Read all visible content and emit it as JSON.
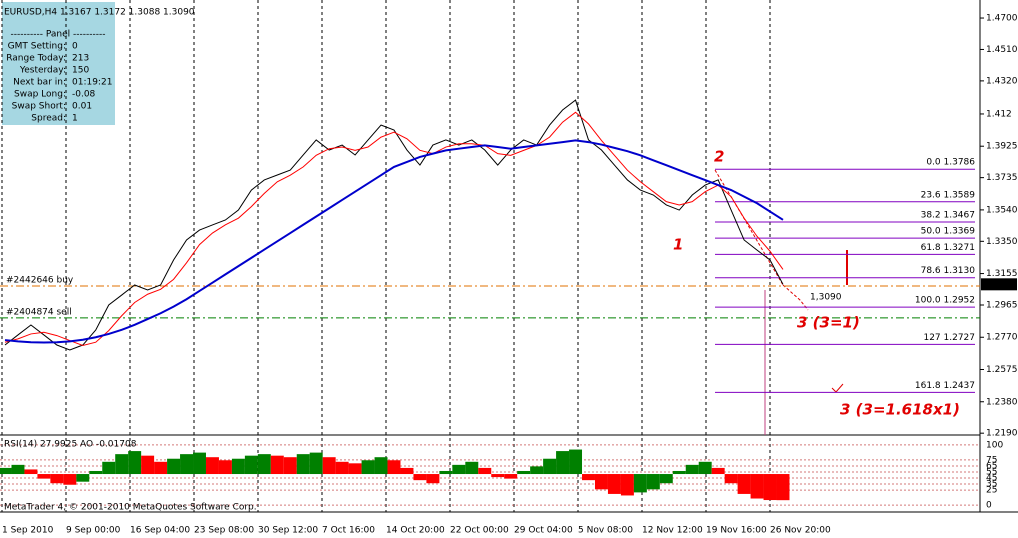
{
  "header": "EURUSD,H4  1.3167 1.3172 1.3088 1.3090",
  "panel": {
    "title": "---------- Panel ----------",
    "rows": [
      [
        "GMT Setting:",
        "0"
      ],
      [
        "Range Today:",
        "213"
      ],
      [
        "Yesterday:",
        "150"
      ],
      [
        "Next bar in:",
        "01:19:21"
      ],
      [
        "Swap Long:",
        "-0.08"
      ],
      [
        "Swap Short:",
        "0.01"
      ],
      [
        "Spread:",
        "1"
      ]
    ]
  },
  "chart_data": {
    "type": "line",
    "ylim": [
      1.2179,
      1.4809
    ],
    "yticks": [
      {
        "value": 1.47,
        "label": "1.4700"
      },
      {
        "value": 1.451,
        "label": "1.4510"
      },
      {
        "value": 1.432,
        "label": "1.4320"
      },
      1.412,
      1.3925,
      1.3735,
      {
        "value": 1.354,
        "label": "1.3540"
      },
      {
        "value": 1.335,
        "label": "1.3350"
      },
      1.3155,
      1.2965,
      {
        "value": 1.277,
        "label": "1.2770"
      },
      1.2575,
      {
        "value": 1.238,
        "label": "1.2380"
      },
      {
        "value": 1.219,
        "label": "1.2190"
      }
    ],
    "x_labels": [
      "1 Sep 2010",
      "9 Sep 00:00",
      "16 Sep 04:00",
      "23 Sep 08:00",
      "30 Sep 12:00",
      "7 Oct 16:00",
      "14 Oct 20:00",
      "22 Oct 00:00",
      "29 Oct 04:00",
      "5 Nov 08:00",
      "12 Nov 12:00",
      "19 Nov 16:00",
      "26 Nov 20:00"
    ],
    "series": [
      {
        "color": "#000000",
        "values": [
          1.2723,
          1.2784,
          1.2844,
          1.2784,
          1.2723,
          1.2693,
          1.2723,
          1.2814,
          1.2965,
          1.3025,
          1.3086,
          1.3056,
          1.3086,
          1.3237,
          1.3358,
          1.3418,
          1.3449,
          1.3479,
          1.3539,
          1.366,
          1.3721,
          1.3751,
          1.3781,
          1.3872,
          1.3963,
          1.3902,
          1.3932,
          1.3872,
          1.3963,
          1.4053,
          1.4023,
          1.3902,
          1.3811,
          1.3932,
          1.3963,
          1.3932,
          1.3963,
          1.3902,
          1.3811,
          1.3902,
          1.3963,
          1.3932,
          1.4053,
          1.4144,
          1.4204,
          1.3963,
          1.3902,
          1.3811,
          1.3721,
          1.366,
          1.363,
          1.357,
          1.3539,
          1.363,
          1.369,
          1.3721,
          1.3539,
          1.3358,
          1.3297,
          1.3237,
          1.309
        ]
      },
      {
        "color": "#ff0000",
        "values": [
          1.274,
          1.276,
          1.279,
          1.28,
          1.278,
          1.275,
          1.272,
          1.274,
          1.281,
          1.29,
          1.298,
          1.303,
          1.306,
          1.312,
          1.322,
          1.333,
          1.34,
          1.345,
          1.349,
          1.356,
          1.364,
          1.371,
          1.375,
          1.38,
          1.387,
          1.391,
          1.392,
          1.39,
          1.392,
          1.398,
          1.401,
          1.397,
          1.39,
          1.388,
          1.392,
          1.394,
          1.394,
          1.393,
          1.388,
          1.387,
          1.39,
          1.393,
          1.398,
          1.407,
          1.413,
          1.406,
          1.396,
          1.387,
          1.378,
          1.371,
          1.365,
          1.359,
          1.357,
          1.359,
          1.365,
          1.369,
          1.362,
          1.349,
          1.338,
          1.329,
          1.318
        ]
      },
      {
        "color": "#0000cc",
        "values": [
          1.2753,
          1.2745,
          1.274,
          1.2738,
          1.274,
          1.2745,
          1.2755,
          1.277,
          1.279,
          1.2815,
          1.2845,
          1.288,
          1.2915,
          1.2955,
          1.3,
          1.305,
          1.31,
          1.315,
          1.32,
          1.325,
          1.33,
          1.335,
          1.34,
          1.345,
          1.35,
          1.355,
          1.36,
          1.365,
          1.37,
          1.375,
          1.38,
          1.383,
          1.386,
          1.388,
          1.39,
          1.391,
          1.392,
          1.393,
          1.392,
          1.391,
          1.392,
          1.393,
          1.394,
          1.395,
          1.396,
          1.395,
          1.3935,
          1.3915,
          1.3895,
          1.387,
          1.384,
          1.381,
          1.378,
          1.375,
          1.372,
          1.369,
          1.366,
          1.362,
          1.358,
          1.353,
          1.348
        ]
      }
    ],
    "fib_color": "#8000c0",
    "fib": [
      {
        "label": "0.0 1.3786",
        "value": 1.3786
      },
      {
        "label": "23.6 1.3589",
        "value": 1.3589
      },
      {
        "label": "38.2 1.3467",
        "value": 1.3467
      },
      {
        "label": "50.0 1.3369",
        "value": 1.3369
      },
      {
        "label": "61.8 1.3271",
        "value": 1.3271
      },
      {
        "label": "78.6 1.3130",
        "value": 1.313
      },
      {
        "label": "100.0 1.2952",
        "value": 1.2952
      },
      {
        "label": "127 1.2727",
        "value": 1.2727
      },
      {
        "label": "161.8 1.2437",
        "value": 1.2437
      }
    ],
    "orders": [
      {
        "label": "#2442646 buy",
        "value": 1.308,
        "color": "#e07000"
      },
      {
        "label": "#2404874 sell",
        "value": 1.2887,
        "color": "#008000"
      }
    ],
    "current": {
      "label": "1.3090",
      "value": 1.309
    },
    "annotations": [
      "1",
      "2",
      "3 (3=1)",
      "3 (3=1.618x1)",
      "1,3090"
    ],
    "indicator": {
      "title": "RSI(14) 27.9925  AO -0.01708",
      "ylim": [
        -8,
        113
      ],
      "yticks": [
        100,
        75,
        65,
        55,
        45,
        35,
        25,
        0
      ],
      "ao_lim": [
        -0.0235,
        0.0242
      ],
      "ao": [
        0.004,
        0.006,
        0.003,
        -0.003,
        -0.006,
        -0.007,
        -0.005,
        0.002,
        0.008,
        0.013,
        0.015,
        0.012,
        0.008,
        0.01,
        0.013,
        0.014,
        0.011,
        0.009,
        0.01,
        0.012,
        0.013,
        0.012,
        0.011,
        0.013,
        0.014,
        0.011,
        0.008,
        0.007,
        0.009,
        0.011,
        0.009,
        0.004,
        -0.004,
        -0.006,
        0.002,
        0.006,
        0.008,
        0.004,
        -0.002,
        -0.003,
        0.002,
        0.005,
        0.01,
        0.015,
        0.016,
        -0.004,
        -0.01,
        -0.013,
        -0.014,
        -0.012,
        -0.01,
        -0.006,
        0.002,
        0.006,
        0.008,
        0.004,
        -0.006,
        -0.013,
        -0.016,
        -0.017,
        -0.01708
      ]
    },
    "footer": "MetaTrader 4, © 2001-2010 MetaQuotes Software Corp."
  }
}
